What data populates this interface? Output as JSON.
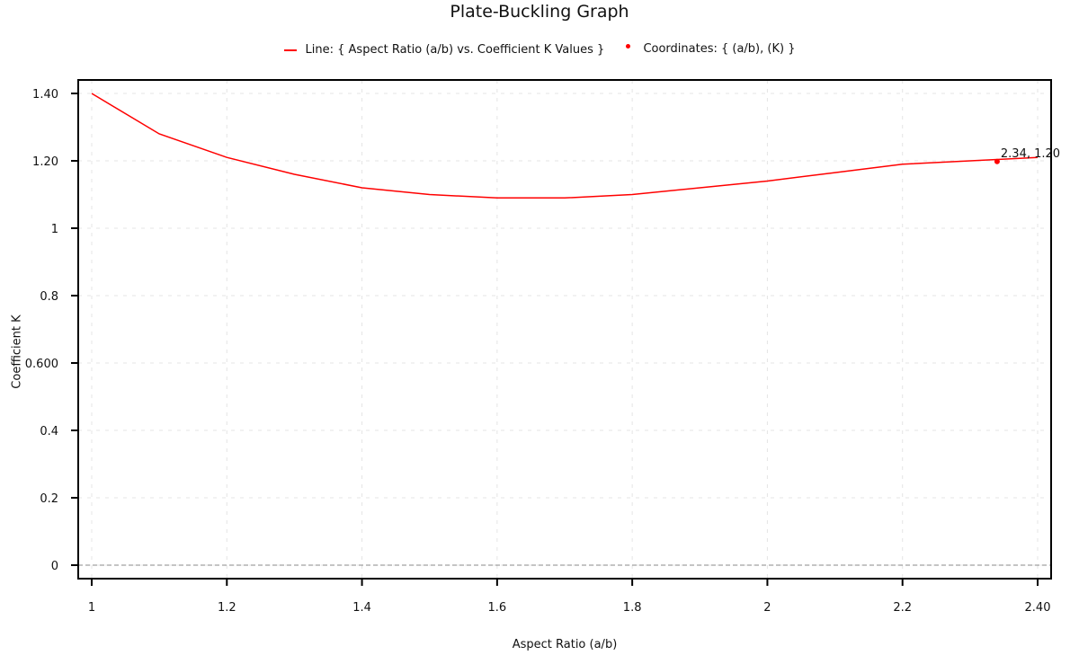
{
  "chart_data": {
    "type": "line",
    "title": "Plate-Buckling Graph",
    "xlabel": "Aspect Ratio (a/b)",
    "ylabel": "Coefficient K",
    "xlim": [
      0.98,
      2.42
    ],
    "ylim": [
      -0.04,
      1.44
    ],
    "x_ticks": [
      1,
      1.2,
      1.4,
      1.6,
      1.8,
      2,
      2.2,
      2.4
    ],
    "x_tick_labels": [
      "1",
      "1.2",
      "1.4",
      "1.6",
      "1.8",
      "2",
      "2.2",
      "2.40"
    ],
    "y_ticks": [
      0,
      0.2,
      0.4,
      0.6,
      0.8,
      1,
      1.2,
      1.4
    ],
    "y_tick_labels": [
      "0",
      "0.2",
      "0.4",
      "0.600",
      "0.8",
      "1",
      "1.20",
      "1.40"
    ],
    "grid": true,
    "legend_position": "top",
    "series": [
      {
        "name": "Line: { Aspect Ratio (a/b) vs. Coefficient K Values }",
        "type": "line",
        "color": "#ff0000",
        "x": [
          1.0,
          1.1,
          1.2,
          1.3,
          1.4,
          1.5,
          1.6,
          1.7,
          1.8,
          1.9,
          2.0,
          2.1,
          2.2,
          2.3,
          2.4
        ],
        "values": [
          1.4,
          1.28,
          1.21,
          1.16,
          1.12,
          1.1,
          1.09,
          1.09,
          1.1,
          1.12,
          1.14,
          1.165,
          1.19,
          1.2,
          1.21
        ]
      },
      {
        "name": "Coordinates: { (a/b), (K) }",
        "type": "scatter",
        "color": "#ff0000",
        "x": [
          2.34
        ],
        "values": [
          1.2
        ]
      }
    ],
    "annotations": [
      {
        "text": "2.34, 1.20",
        "x": 2.34,
        "y": 1.2
      }
    ],
    "reference_lines": [
      {
        "axis": "y",
        "value": 0,
        "style": "dashed",
        "color": "#888888"
      }
    ]
  },
  "legend": {
    "line_label": "Line: { Aspect Ratio (a/b) vs. Coefficient K Values }",
    "point_label": "Coordinates: { (a/b), (K) }"
  }
}
